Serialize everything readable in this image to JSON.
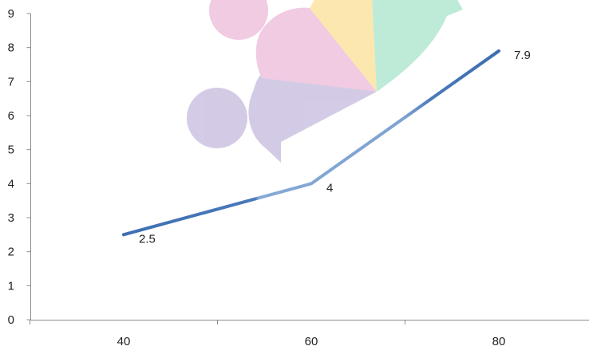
{
  "chart_data": {
    "type": "line",
    "title": "",
    "xlabel": "",
    "ylabel": "",
    "x": [
      40,
      60,
      80
    ],
    "x_tick_labels": [
      "40",
      "60",
      "80"
    ],
    "y_tick_labels": [
      "0",
      "1",
      "2",
      "3",
      "4",
      "5",
      "6",
      "7",
      "8",
      "9"
    ],
    "ylim": [
      0,
      9
    ],
    "grid": false,
    "legend": "none",
    "series": [
      {
        "values": [
          2.5,
          4,
          7.9
        ],
        "data_labels": [
          "2.5",
          "4",
          "7.9"
        ],
        "color": "#4f7fc0"
      }
    ]
  },
  "decoration": {
    "watermark": "circles-and-fan-graphic",
    "colors": {
      "purple": "#cfc6e3",
      "pink": "#efc6df",
      "yellow": "#fce5a6",
      "green": "#b7e9d4"
    }
  }
}
